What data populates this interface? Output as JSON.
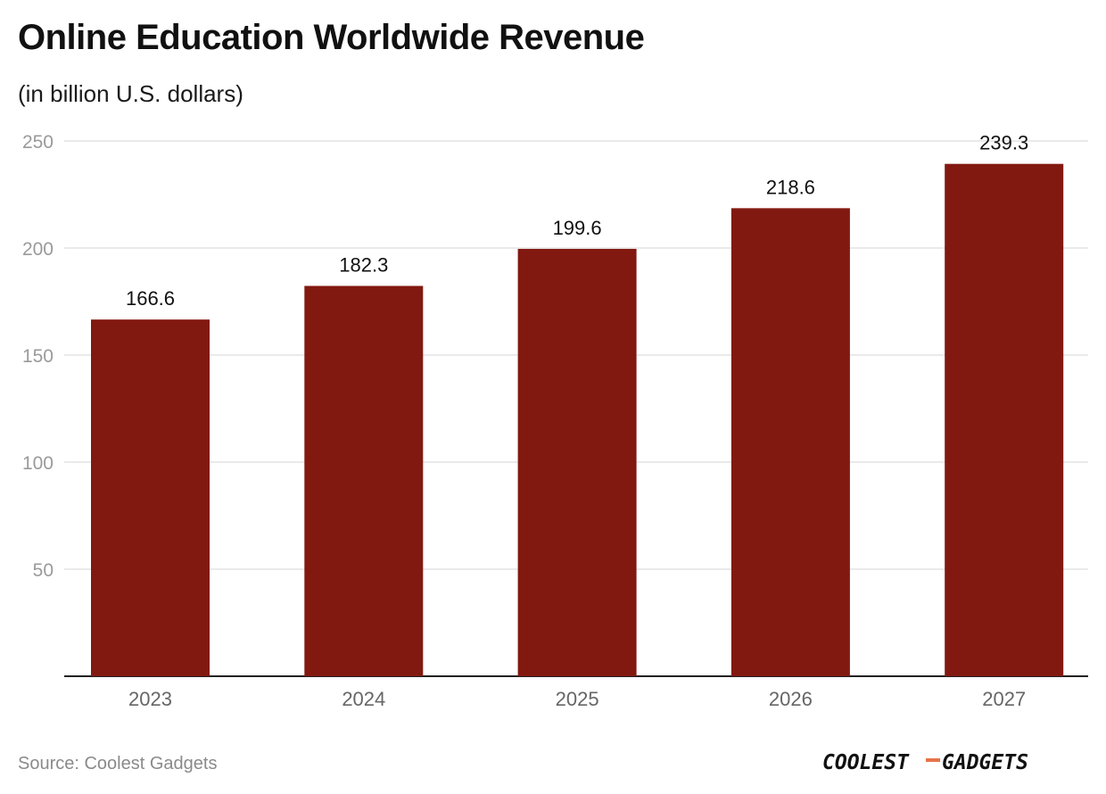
{
  "header": {
    "title": "Online Education Worldwide Revenue",
    "subtitle": "(in billion U.S. dollars)"
  },
  "footer": {
    "source": "Source: Coolest Gadgets",
    "logo_text_left": "COOLEST",
    "logo_text_right": "GADGETS"
  },
  "colors": {
    "bar": "#821911",
    "grid": "#e3e3e3",
    "axis": "#222222",
    "tick_label": "#9a9a9a",
    "category_label": "#666666",
    "value_label": "#111111",
    "logo_dash": "#e8734a"
  },
  "chart_data": {
    "type": "bar",
    "title": "Online Education Worldwide Revenue",
    "subtitle": "(in billion U.S. dollars)",
    "categories": [
      "2023",
      "2024",
      "2025",
      "2026",
      "2027"
    ],
    "values": [
      166.6,
      182.3,
      199.6,
      218.6,
      239.3
    ],
    "value_labels": [
      "166.6",
      "182.3",
      "199.6",
      "218.6",
      "239.3"
    ],
    "ylim": [
      0,
      250
    ],
    "yticks": [
      50,
      100,
      150,
      200,
      250
    ],
    "grid": true,
    "legend": "none"
  }
}
